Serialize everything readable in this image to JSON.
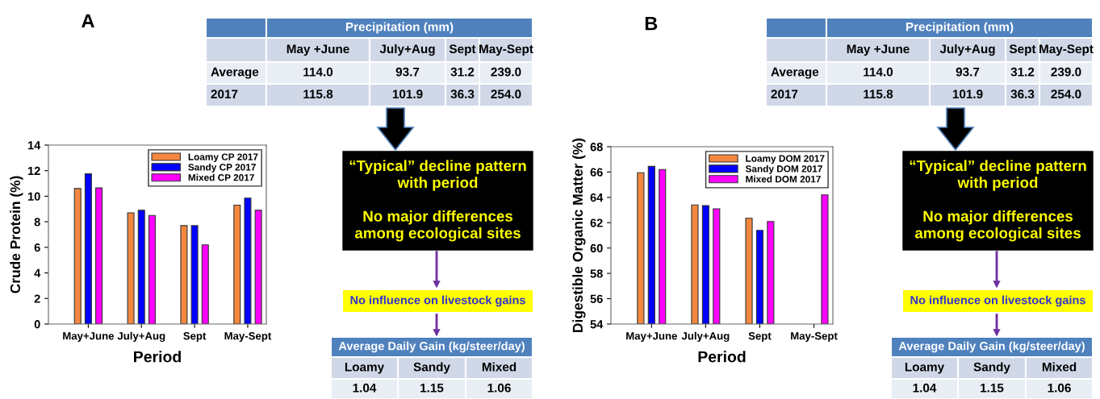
{
  "chart_data": [
    {
      "type": "bar",
      "title": "A",
      "xlabel": "Period",
      "ylabel": "Crude Protein (%)",
      "categories": [
        "May+June",
        "July+Aug",
        "Sept",
        "May-Sept"
      ],
      "ylim": [
        0,
        14
      ],
      "yticks": [
        0,
        2,
        4,
        6,
        8,
        10,
        12,
        14
      ],
      "legend": "top right",
      "series": [
        {
          "name": "Loamy CP 2017",
          "color": "#f4873f",
          "values": [
            10.6,
            8.7,
            7.7,
            9.3
          ]
        },
        {
          "name": "Sandy CP 2017",
          "color": "#0000ff",
          "values": [
            11.75,
            8.9,
            7.7,
            9.85
          ]
        },
        {
          "name": "Mixed CP 2017",
          "color": "#ff00ff",
          "values": [
            10.65,
            8.5,
            6.2,
            8.9
          ]
        }
      ]
    },
    {
      "type": "other",
      "annotations": [
        "Precipitation (mm)",
        "May +June",
        "July+Aug",
        "Sept",
        "May-Sept",
        "Average",
        "114.0",
        "93.7",
        "31.2",
        "239.0",
        "2017",
        "115.8",
        "101.9",
        "36.3",
        "254.0",
        "“Typical” decline pattern\nwith period\n\nNo major differences\namong ecological sites",
        "No influence on livestock gains",
        "Average Daily Gain (kg/steer/day)",
        "Loamy",
        "Sandy",
        "Mixed",
        "1.04",
        "1.15",
        "1.06"
      ]
    },
    {
      "type": "bar",
      "title": "B",
      "xlabel": "Period",
      "ylabel": "Digestible Organic Matter (%)",
      "categories": [
        "May+June",
        "July+Aug",
        "Sept",
        "May-Sept"
      ],
      "ylim": [
        54,
        68
      ],
      "yticks": [
        54,
        56,
        58,
        60,
        62,
        64,
        66,
        68
      ],
      "legend": "top right",
      "series": [
        {
          "name": "Loamy DOM 2017",
          "color": "#f4873f",
          "values": [
            65.95,
            63.4,
            62.35,
            null
          ]
        },
        {
          "name": "Sandy DOM 2017",
          "color": "#0000ff",
          "values": [
            66.45,
            63.35,
            61.4,
            null
          ]
        },
        {
          "name": "Mixed DOM 2017",
          "color": "#ff00ff",
          "values": [
            66.2,
            63.1,
            62.1,
            64.2
          ]
        }
      ]
    },
    {
      "type": "other",
      "annotations": [
        "Precipitation (mm)",
        "May +June",
        "July+Aug",
        "Sept",
        "May-Sept",
        "Average",
        "114.0",
        "93.7",
        "31.2",
        "239.0",
        "2017",
        "115.8",
        "101.9",
        "36.3",
        "254.0",
        "“Typical” decline pattern\nwith period\n\nNo major differences\namong ecological sites",
        "No influence on livestock gains",
        "Average Daily Gain (kg/steer/day)",
        "Loamy",
        "Sandy",
        "Mixed",
        "1.04",
        "1.15",
        "1.06"
      ]
    }
  ]
}
